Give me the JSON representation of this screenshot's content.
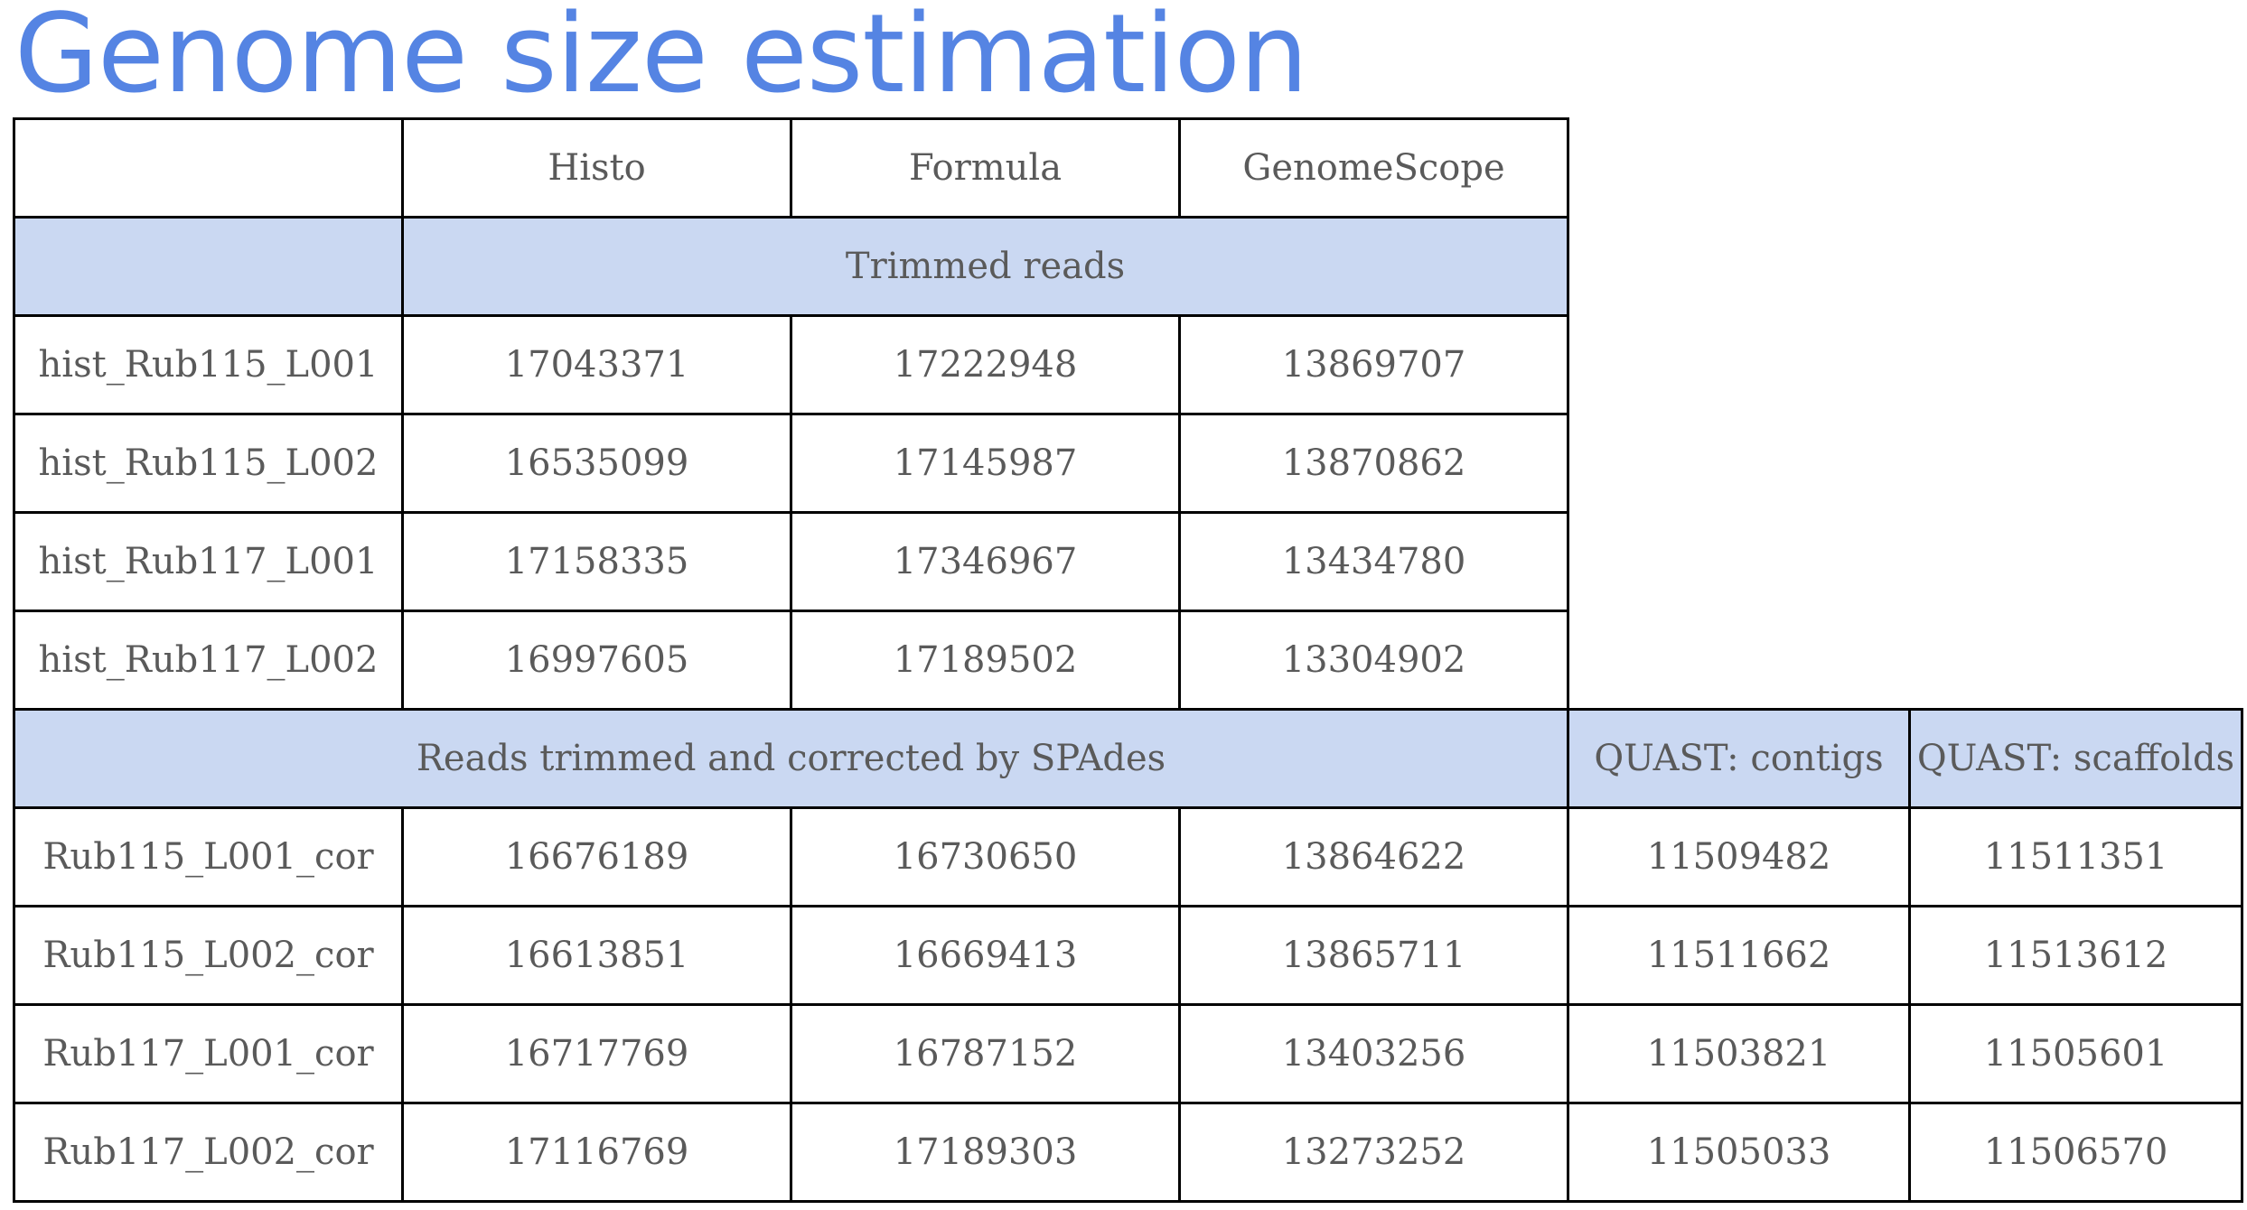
{
  "title": "Genome size estimation",
  "header": {
    "corner": "",
    "columns": [
      "Histo",
      "Formula",
      "GenomeScope"
    ]
  },
  "section1": {
    "label": "Trimmed reads",
    "rows": [
      {
        "name": "hist_Rub115_L001",
        "histo": "17043371",
        "formula": "17222948",
        "genomescope": "13869707"
      },
      {
        "name": "hist_Rub115_L002",
        "histo": "16535099",
        "formula": "17145987",
        "genomescope": "13870862"
      },
      {
        "name": "hist_Rub117_L001",
        "histo": "17158335",
        "formula": "17346967",
        "genomescope": "13434780"
      },
      {
        "name": "hist_Rub117_L002",
        "histo": "16997605",
        "formula": "17189502",
        "genomescope": "13304902"
      }
    ]
  },
  "section2": {
    "label": "Reads trimmed and corrected by SPAdes",
    "quast_contigs": "QUAST: contigs",
    "quast_scaffolds": "QUAST: scaffolds",
    "rows": [
      {
        "name": "Rub115_L001_cor",
        "histo": "16676189",
        "formula": "16730650",
        "genomescope": "13864622",
        "contigs": "11509482",
        "scaffolds": "11511351"
      },
      {
        "name": "Rub115_L002_cor",
        "histo": "16613851",
        "formula": "16669413",
        "genomescope": "13865711",
        "contigs": "11511662",
        "scaffolds": "11513612"
      },
      {
        "name": "Rub117_L001_cor",
        "histo": "16717769",
        "formula": "16787152",
        "genomescope": "13403256",
        "contigs": "11503821",
        "scaffolds": "11505601"
      },
      {
        "name": "Rub117_L002_cor",
        "histo": "17116769",
        "formula": "17189303",
        "genomescope": "13273252",
        "contigs": "11505033",
        "scaffolds": "11506570"
      }
    ]
  },
  "colors": {
    "title": "#5584e3",
    "band": "#cad8f2",
    "text": "#5a5a5a",
    "border": "#000000"
  }
}
